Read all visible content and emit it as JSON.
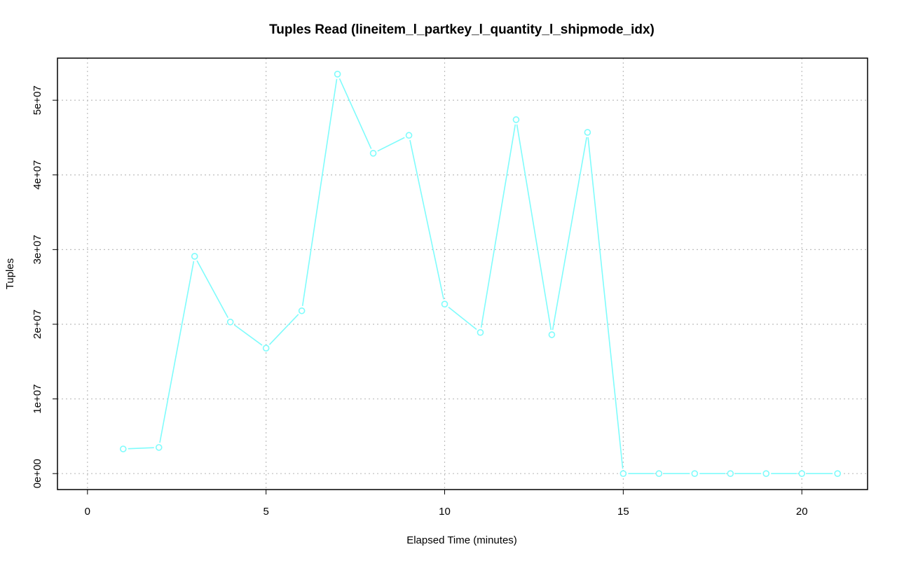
{
  "chart_data": {
    "type": "line",
    "title": "Tuples Read (lineitem_l_partkey_l_quantity_l_shipmode_idx)",
    "xlabel": "Elapsed Time (minutes)",
    "ylabel": "Tuples",
    "xlim": [
      -0.84,
      21.84
    ],
    "ylim": [
      -2140000,
      55640000
    ],
    "xticks": [
      0,
      5,
      10,
      15,
      20
    ],
    "xtick_labels": [
      "0",
      "5",
      "10",
      "15",
      "20"
    ],
    "yticks": [
      0,
      10000000,
      20000000,
      30000000,
      40000000,
      50000000
    ],
    "ytick_labels": [
      "0e+00",
      "1e+07",
      "2e+07",
      "3e+07",
      "4e+07",
      "5e+07"
    ],
    "grid": true,
    "color": "#7ffcfc",
    "series": [
      {
        "x": [
          1,
          2,
          3,
          4,
          5,
          6,
          7,
          8,
          9,
          10,
          11,
          12,
          13,
          14,
          15,
          16,
          17,
          18,
          19,
          20,
          21
        ],
        "values": [
          3300000,
          3500000,
          29100000,
          20300000,
          16800000,
          21800000,
          53500000,
          42900000,
          45300000,
          22700000,
          18900000,
          47400000,
          18600000,
          45700000,
          0,
          0,
          0,
          0,
          0,
          0,
          0
        ]
      }
    ]
  }
}
